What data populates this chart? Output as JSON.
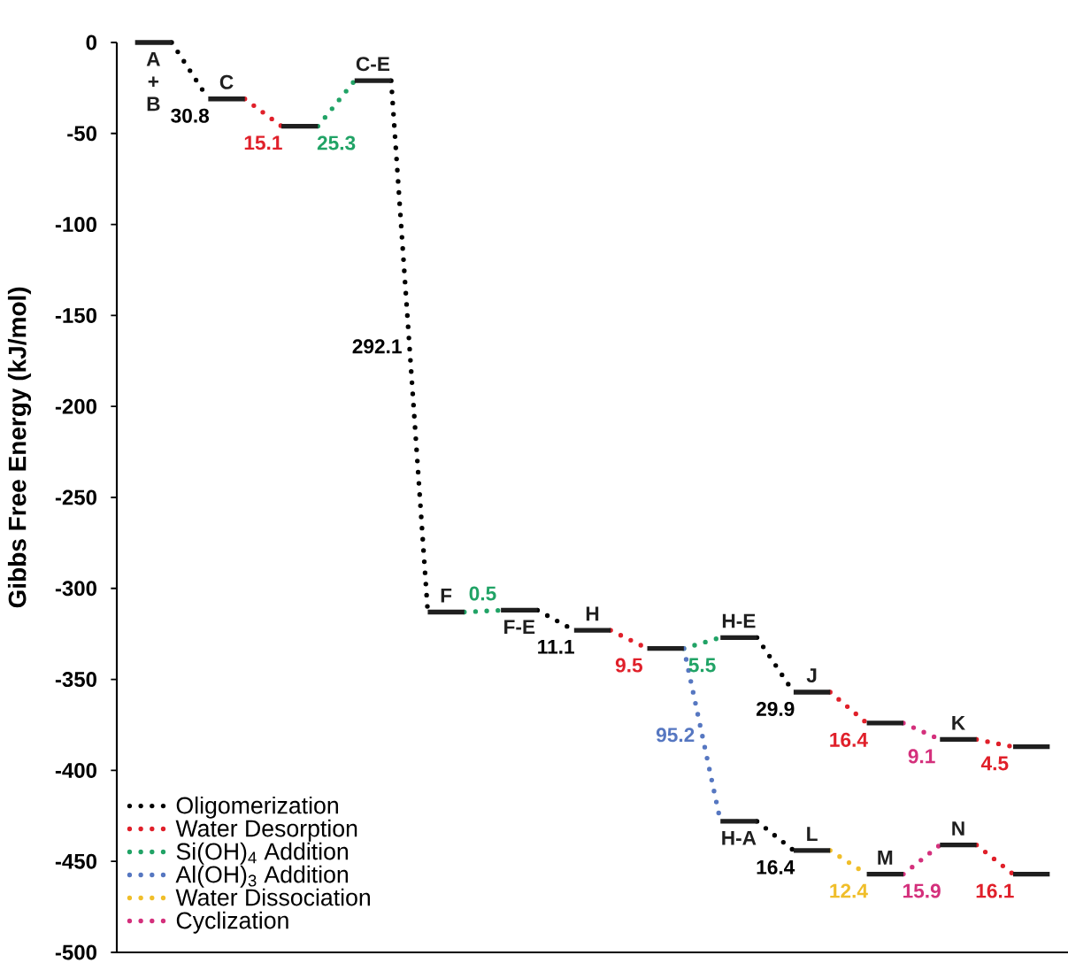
{
  "chart_data": {
    "type": "line",
    "ylabel": "Gibbs Free Energy (kJ/mol)",
    "categories": [
      null,
      null,
      null,
      null,
      null,
      null,
      null,
      null,
      null,
      null,
      null,
      null,
      null,
      null,
      null,
      null,
      null,
      null,
      null,
      null,
      null,
      null,
      null,
      null,
      null,
      null
    ],
    "ylim": [
      -500,
      0
    ],
    "yticks": [
      -500,
      -450,
      -400,
      -350,
      -300,
      -250,
      -200,
      -150,
      -100,
      -50,
      0
    ],
    "tick_labels": "y",
    "legend": "bottom left",
    "series": [
      {
        "name": "Oligomerization",
        "color": "#000000",
        "type": "line",
        "line_style": "dotted",
        "values": [
          null,
          0,
          -31,
          null,
          null,
          null,
          null,
          -21,
          -313,
          null,
          null,
          -312,
          -323,
          null,
          null,
          null,
          null,
          -327,
          -357,
          null,
          null,
          null,
          null,
          null,
          null,
          null
        ]
      },
      {
        "name": "Water Desorption",
        "color": "#e0202a",
        "type": "line",
        "line_style": "dotted",
        "values": [
          null,
          null,
          null,
          -31,
          -46,
          null,
          null,
          null,
          null,
          null,
          null,
          null,
          null,
          -323,
          -333,
          null,
          null,
          null,
          null,
          -357,
          -374,
          null,
          null,
          -383,
          -387,
          null
        ]
      },
      {
        "name": "Si(OH)$_{4}$ Addition",
        "color": "#21a366",
        "type": "line",
        "line_style": "dotted",
        "values": [
          null,
          null,
          null,
          null,
          null,
          -46,
          -21,
          null,
          null,
          -313,
          -312,
          null,
          null,
          null,
          null,
          -333,
          -327,
          null,
          null,
          null,
          null,
          null,
          null,
          null,
          null,
          null
        ]
      },
      {
        "name": "Al(OH)$_{3}$ Addition",
        "color": "#5677c1",
        "type": "line",
        "line_style": "dotted",
        "values": [
          null,
          null,
          null,
          null,
          null,
          null,
          null,
          null,
          null,
          null,
          null,
          null,
          null,
          null,
          null,
          -333,
          -428,
          null,
          null,
          null,
          null,
          null,
          null,
          null,
          null,
          null
        ]
      },
      {
        "name": "Water Dissociation",
        "color": "#f0be2a",
        "type": "line",
        "line_style": "dotted",
        "values": [
          null,
          null,
          null,
          null,
          null,
          null,
          null,
          null,
          null,
          null,
          null,
          null,
          null,
          null,
          null,
          null,
          null,
          null,
          null,
          -444,
          -457,
          null,
          null,
          null,
          null,
          null
        ]
      },
      {
        "name": "Cyclization",
        "color": "#d4307c",
        "type": "line",
        "line_style": "dotted",
        "values": [
          null,
          null,
          null,
          null,
          null,
          null,
          null,
          null,
          null,
          null,
          null,
          null,
          null,
          null,
          null,
          null,
          null,
          null,
          null,
          null,
          null,
          -374,
          -383,
          null,
          null,
          null
        ]
      },
      {
        "color": "#000000",
        "type": "line",
        "line_style": "dotted",
        "values": [
          null,
          null,
          null,
          null,
          null,
          null,
          null,
          null,
          null,
          null,
          null,
          null,
          null,
          null,
          null,
          null,
          null,
          -428,
          -444,
          null,
          null,
          null,
          null,
          null,
          null,
          null
        ]
      },
      {
        "color": "#e0202a",
        "type": "line",
        "line_style": "dotted",
        "values": [
          null,
          null,
          null,
          null,
          null,
          null,
          null,
          null,
          null,
          null,
          null,
          null,
          null,
          null,
          null,
          null,
          null,
          null,
          null,
          null,
          null,
          null,
          null,
          -441,
          -457,
          null
        ]
      },
      {
        "color": "#d4307c",
        "type": "line",
        "line_style": "dotted",
        "values": [
          null,
          null,
          null,
          null,
          null,
          null,
          null,
          null,
          null,
          null,
          null,
          null,
          null,
          null,
          null,
          null,
          null,
          null,
          null,
          null,
          null,
          -457,
          -441,
          null,
          null,
          null
        ]
      },
      {
        "color": "#1f1f1f",
        "type": "line",
        "line_style": "solid",
        "values": [
          0,
          0,
          null,
          null,
          -46,
          -46,
          null,
          null,
          -313,
          -313,
          null,
          null,
          -323,
          -323,
          null,
          null,
          -327,
          -327,
          null,
          null,
          -374,
          -374,
          null,
          null,
          -387,
          -387
        ],
        "value_labels": [
          null,
          "A + B",
          null,
          null,
          null,
          null,
          null,
          null,
          "F",
          null,
          null,
          null,
          "H",
          null,
          null,
          null,
          "H-E",
          null,
          null,
          null,
          null,
          null,
          null,
          null,
          null,
          null
        ]
      },
      {
        "color": "#1f1f1f",
        "type": "line",
        "line_style": "solid",
        "values": [
          null,
          null,
          -31,
          -31,
          null,
          null,
          -21,
          -21,
          null,
          null,
          -312,
          -312,
          null,
          null,
          -333,
          -333,
          null,
          null,
          -357,
          -357,
          null,
          null,
          -383,
          -383,
          null,
          null
        ],
        "value_labels": [
          null,
          null,
          "C",
          null,
          null,
          null,
          "C-E",
          null,
          null,
          null,
          null,
          "F-E",
          null,
          null,
          null,
          null,
          null,
          null,
          "J",
          null,
          null,
          null,
          "K",
          null,
          null,
          null
        ]
      },
      {
        "color": "#1f1f1f",
        "type": "line",
        "line_style": "solid",
        "values": [
          null,
          null,
          null,
          null,
          null,
          null,
          null,
          null,
          null,
          null,
          null,
          null,
          null,
          null,
          null,
          null,
          -428,
          -428,
          null,
          null,
          -457,
          -457,
          null,
          null,
          -457,
          -457
        ],
        "value_labels": [
          null,
          null,
          null,
          null,
          null,
          null,
          null,
          null,
          null,
          null,
          null,
          null,
          null,
          null,
          null,
          null,
          null,
          "H-A",
          null,
          null,
          "M",
          null,
          null,
          null,
          null,
          null
        ]
      },
      {
        "color": "#1f1f1f",
        "type": "line",
        "line_style": "solid",
        "values": [
          null,
          null,
          null,
          null,
          null,
          null,
          null,
          null,
          null,
          null,
          null,
          null,
          null,
          null,
          null,
          null,
          null,
          null,
          -444,
          -444,
          null,
          null,
          -441,
          -441,
          null,
          null
        ],
        "value_labels": [
          null,
          null,
          null,
          null,
          null,
          null,
          null,
          null,
          null,
          null,
          null,
          null,
          null,
          null,
          null,
          null,
          null,
          null,
          "L",
          null,
          null,
          null,
          "N",
          null,
          null,
          null
        ]
      }
    ],
    "annotations": [
      "30.8",
      "292.1",
      "11.1",
      "29.9",
      "15.1",
      "9.5",
      "16.4",
      "4.5",
      "25.3",
      "0.5",
      "5.5",
      "95.2",
      "12.4",
      "9.1",
      "16.4",
      "16.1",
      "15.9"
    ]
  }
}
